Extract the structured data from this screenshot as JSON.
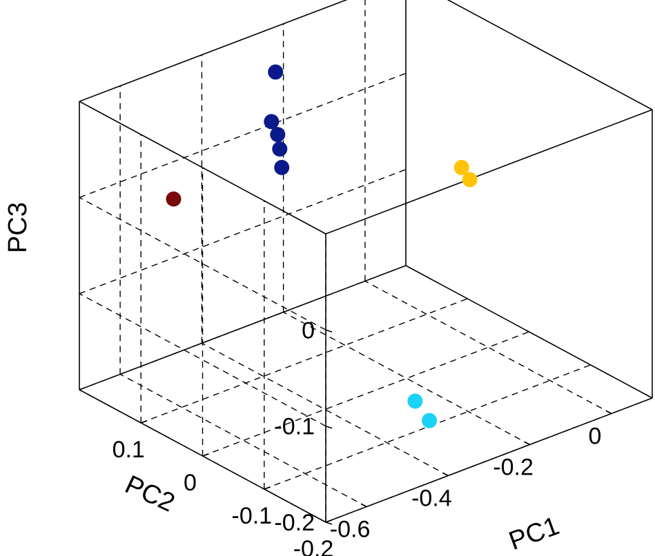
{
  "chart_data": {
    "type": "scatter",
    "projection": "3d",
    "grid": true,
    "xlabel": "PC1",
    "ylabel": "PC2",
    "zlabel": "PC3",
    "xlim": [
      -0.7,
      0.1
    ],
    "ylim": [
      -0.2,
      0.2
    ],
    "zlim": [
      -0.2,
      0.1
    ],
    "xticks": [
      -0.6,
      -0.4,
      -0.2,
      0
    ],
    "xtick_labels": [
      "-0.6",
      "-0.4",
      "-0.2",
      "0"
    ],
    "yticks": [
      -0.2,
      -0.1,
      0,
      0.1
    ],
    "ytick_labels": [
      "-0.2",
      "-0.1",
      "0",
      "0.1"
    ],
    "zticks": [
      -0.2,
      -0.1,
      0
    ],
    "ztick_labels": [
      "-0.2",
      "-0.1",
      "0"
    ],
    "series": [
      {
        "color": "#7a0a0a",
        "points": [
          [
            -0.62,
            0.1,
            0.02
          ]
        ]
      },
      {
        "color": "#0a1a8a",
        "points": [
          [
            -0.35,
            0.12,
            0.05
          ],
          [
            -0.34,
            0.12,
            0.1
          ],
          [
            -0.35,
            0.11,
            0.04
          ],
          [
            -0.36,
            0.1,
            0.03
          ],
          [
            -0.355,
            0.1,
            0.01
          ]
        ]
      },
      {
        "color": "#ffc30a",
        "points": [
          [
            -0.02,
            0.03,
            -0.02
          ],
          [
            -0.015,
            0.02,
            -0.03
          ]
        ]
      },
      {
        "color": "#1ad2f5",
        "points": [
          [
            -0.3,
            -0.08,
            -0.18
          ],
          [
            -0.28,
            -0.09,
            -0.2
          ]
        ]
      }
    ]
  }
}
